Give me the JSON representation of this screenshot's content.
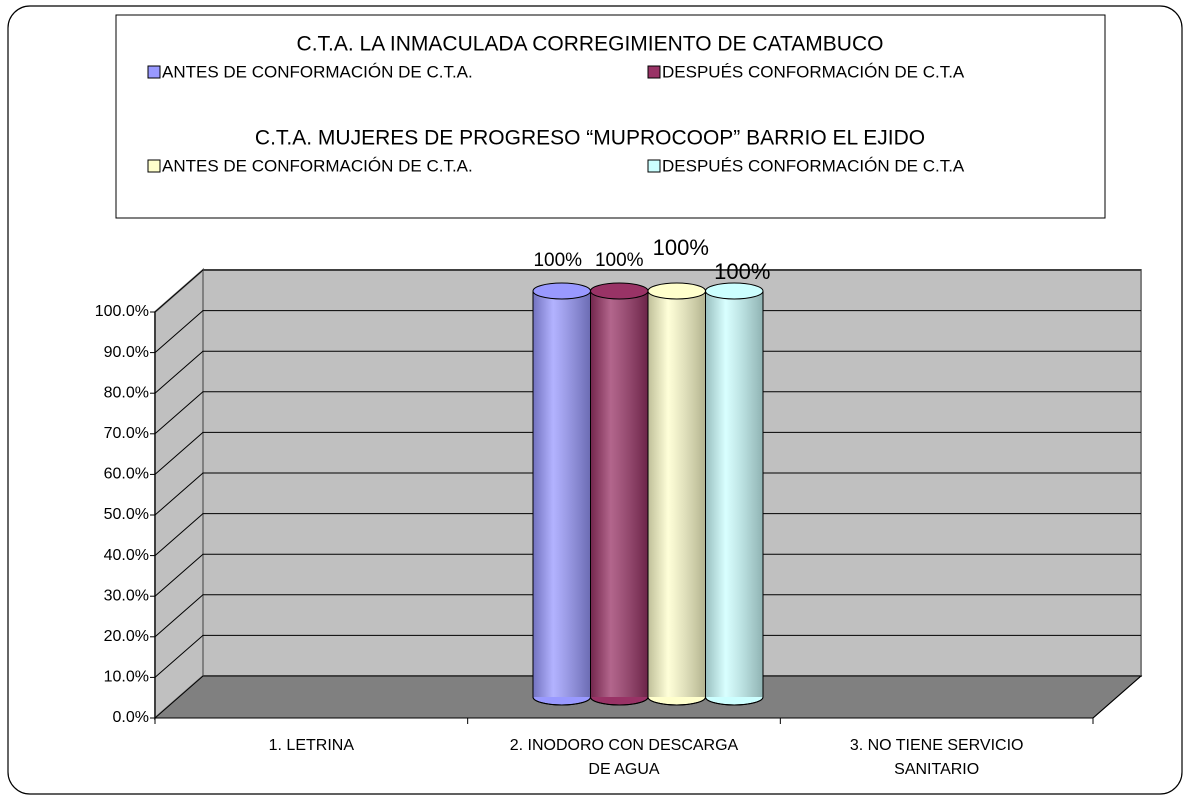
{
  "chart_data": {
    "type": "bar3d",
    "legend_titles": [
      "C.T.A. LA INMACULADA CORREGIMIENTO DE CATAMBUCO",
      "C.T.A. MUJERES DE PROGRESO “MUPROCOOP” BARRIO EL EJIDO"
    ],
    "categories": [
      "1. LETRINA",
      "2. INODORO CON DESCARGA DE AGUA",
      "3. NO TIENE SERVICIO SANITARIO"
    ],
    "series": [
      {
        "name": "ANTES  DE CONFORMACIÓN DE C.T.A.",
        "color": "#9999ff",
        "values": [
          0,
          100,
          0
        ],
        "value_labels": [
          null,
          "100%",
          null
        ]
      },
      {
        "name": "DESPUÉS CONFORMACIÓN DE C.T.A",
        "color": "#993366",
        "values": [
          0,
          100,
          0
        ],
        "value_labels": [
          null,
          "100%",
          null
        ]
      },
      {
        "name": "ANTES  DE CONFORMACIÓN DE C.T.A.",
        "color": "#ffffcc",
        "values": [
          0,
          100,
          0
        ],
        "value_labels": [
          null,
          "100%",
          null
        ]
      },
      {
        "name": "DESPUÉS CONFORMACIÓN DE C.T.A",
        "color": "#ccffff",
        "values": [
          0,
          100,
          0
        ],
        "value_labels": [
          null,
          "100%",
          null
        ]
      }
    ],
    "ylim": [
      0,
      100
    ],
    "yticks": [
      {
        "value": 0,
        "label": "0.0%"
      },
      {
        "value": 10,
        "label": "10.0%"
      },
      {
        "value": 20,
        "label": "20.0%"
      },
      {
        "value": 30,
        "label": "30.0%"
      },
      {
        "value": 40,
        "label": "40.0%"
      },
      {
        "value": 50,
        "label": "50.0%"
      },
      {
        "value": 60,
        "label": "60.0%"
      },
      {
        "value": 70,
        "label": "70.0%"
      },
      {
        "value": 80,
        "label": "80.0%"
      },
      {
        "value": 90,
        "label": "90.0%"
      },
      {
        "value": 100,
        "label": "100.0%"
      }
    ],
    "grid": true
  }
}
